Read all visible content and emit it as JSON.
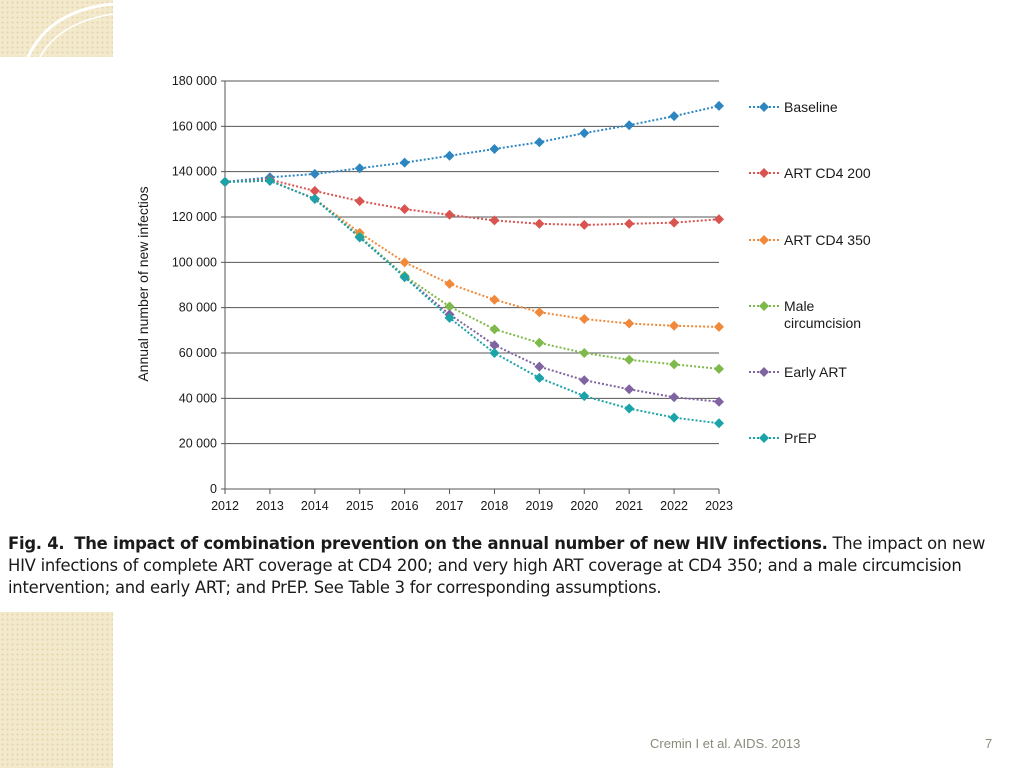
{
  "caption": {
    "fig_label": "Fig. 4.",
    "title": "The impact of combination prevention on the annual number of new HIV infections.",
    "text": "The impact on new HIV infections of complete ART coverage at CD4 200; and very high ART coverage at CD4 350; and a male circumcision intervention; and early ART; and PrEP. See Table 3 for corresponding assumptions."
  },
  "footer": {
    "citation": "Cremin I et al. AIDS. 2013",
    "page_number": "7"
  },
  "colors": {
    "deco_fill": "#f3e9cc",
    "deco_dots": "#e3d3a6",
    "grid": "#555555",
    "text": "#1a1a1a"
  },
  "chart_data": {
    "type": "line",
    "title": "",
    "xlabel": "",
    "ylabel": "Annual number of new infectios",
    "xlim": [
      2012,
      2023
    ],
    "ylim": [
      0,
      180000
    ],
    "y_ticks": [
      0,
      20000,
      40000,
      60000,
      80000,
      100000,
      120000,
      140000,
      160000,
      180000
    ],
    "y_tick_labels": [
      "0",
      "20 000",
      "40 000",
      "60 000",
      "80 000",
      "100 000",
      "120 000",
      "140 000",
      "160 000",
      "180 000"
    ],
    "x": [
      2012,
      2013,
      2014,
      2015,
      2016,
      2017,
      2018,
      2019,
      2020,
      2021,
      2022,
      2023
    ],
    "x_tick_labels": [
      "2012",
      "2013",
      "2014",
      "2015",
      "2016",
      "2017",
      "2018",
      "2019",
      "2020",
      "2021",
      "2022",
      "2023"
    ],
    "grid": "horizontal",
    "legend_position": "right",
    "series": [
      {
        "name": "Baseline",
        "color": "#2e86c1",
        "values": [
          135500,
          137500,
          139000,
          141500,
          144000,
          147000,
          150000,
          153000,
          157000,
          160500,
          164500,
          169000
        ]
      },
      {
        "name": "ART CD4 200",
        "color": "#d9534f",
        "values": [
          135500,
          136500,
          131500,
          127000,
          123500,
          121000,
          118500,
          117000,
          116500,
          117000,
          117500,
          119000
        ]
      },
      {
        "name": "ART CD4 350",
        "color": "#f0893a",
        "values": [
          135500,
          136000,
          128000,
          113000,
          100000,
          90500,
          83500,
          78000,
          75000,
          73000,
          72000,
          71500
        ]
      },
      {
        "name": "Male circumcision",
        "color": "#7fb94a",
        "values": [
          135500,
          136000,
          128000,
          111500,
          94000,
          80500,
          70500,
          64500,
          60000,
          57000,
          55000,
          53000
        ]
      },
      {
        "name": "Early ART",
        "color": "#8064a2",
        "values": [
          135500,
          136000,
          128000,
          111000,
          93500,
          77000,
          63500,
          54000,
          48000,
          44000,
          40500,
          38500
        ]
      },
      {
        "name": "PrEP",
        "color": "#1aa3a8",
        "values": [
          135500,
          136000,
          128000,
          111000,
          93500,
          75500,
          60000,
          49000,
          41000,
          35500,
          31500,
          29000
        ]
      }
    ],
    "legend_labels": [
      [
        "Baseline"
      ],
      [
        "ART CD4 200"
      ],
      [
        "ART CD4 350"
      ],
      [
        "Male",
        "circumcision"
      ],
      [
        "Early ART"
      ],
      [
        "PrEP"
      ]
    ]
  }
}
